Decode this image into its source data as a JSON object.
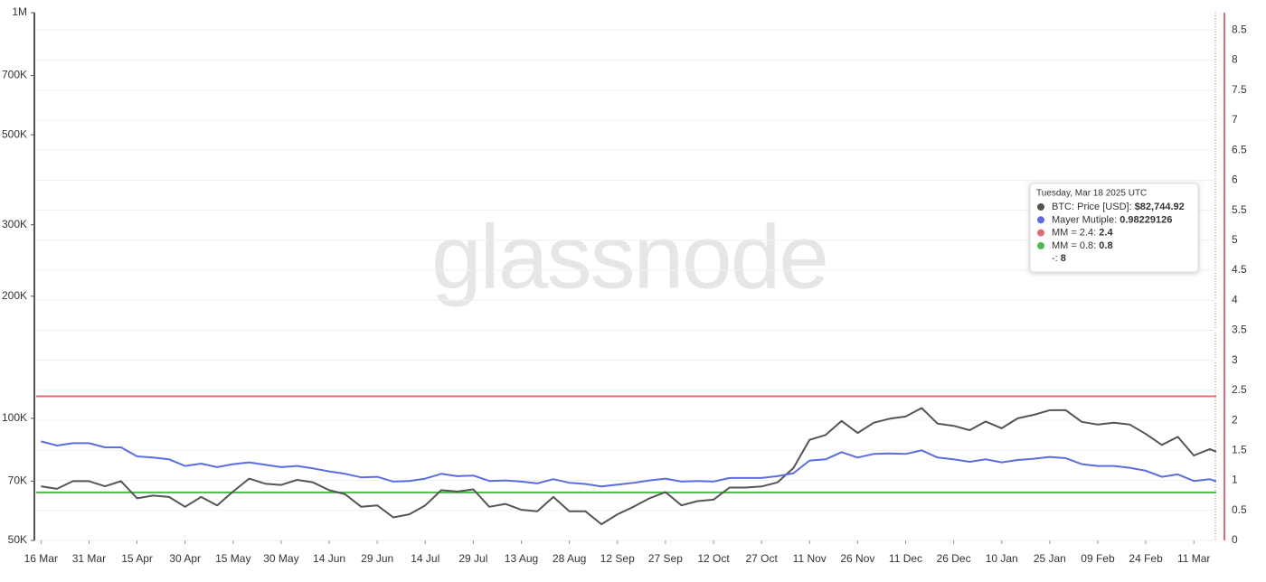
{
  "chart_data": {
    "type": "line",
    "watermark": "glassnode",
    "log_y": true,
    "grid": true,
    "ylim": [
      50000,
      1000000
    ],
    "yticks": [
      {
        "value": 50000,
        "label": "50K"
      },
      {
        "value": 70000,
        "label": "70K"
      },
      {
        "value": 100000,
        "label": "100K"
      },
      {
        "value": 200000,
        "label": "200K"
      },
      {
        "value": 300000,
        "label": "300K"
      },
      {
        "value": 500000,
        "label": "500K"
      },
      {
        "value": 700000,
        "label": "700K"
      },
      {
        "value": 1000000,
        "label": "1M"
      }
    ],
    "y2lim": [
      0,
      8.79
    ],
    "y2ticks": [
      0,
      0.5,
      1,
      1.5,
      2,
      2.5,
      3,
      3.5,
      4,
      4.5,
      5,
      5.5,
      6,
      6.5,
      7,
      7.5,
      8,
      8.5
    ],
    "xlim": [
      -1.5,
      367
    ],
    "xticks": [
      {
        "value": 0,
        "label": "16 Mar"
      },
      {
        "value": 15,
        "label": "31 Mar"
      },
      {
        "value": 30,
        "label": "15 Apr"
      },
      {
        "value": 45,
        "label": "30 Apr"
      },
      {
        "value": 60,
        "label": "15 May"
      },
      {
        "value": 75,
        "label": "30 May"
      },
      {
        "value": 90,
        "label": "14 Jun"
      },
      {
        "value": 105,
        "label": "29 Jun"
      },
      {
        "value": 120,
        "label": "14 Jul"
      },
      {
        "value": 135,
        "label": "29 Jul"
      },
      {
        "value": 150,
        "label": "13 Aug"
      },
      {
        "value": 165,
        "label": "28 Aug"
      },
      {
        "value": 180,
        "label": "12 Sep"
      },
      {
        "value": 195,
        "label": "27 Sep"
      },
      {
        "value": 210,
        "label": "12 Oct"
      },
      {
        "value": 225,
        "label": "27 Oct"
      },
      {
        "value": 240,
        "label": "11 Nov"
      },
      {
        "value": 255,
        "label": "26 Nov"
      },
      {
        "value": 270,
        "label": "11 Dec"
      },
      {
        "value": 285,
        "label": "26 Dec"
      },
      {
        "value": 300,
        "label": "10 Jan"
      },
      {
        "value": 315,
        "label": "25 Jan"
      },
      {
        "value": 330,
        "label": "09 Feb"
      },
      {
        "value": 345,
        "label": "24 Feb"
      },
      {
        "value": 360,
        "label": "11 Mar"
      }
    ],
    "x": [
      0,
      5,
      10,
      15,
      20,
      25,
      30,
      35,
      40,
      45,
      50,
      55,
      60,
      65,
      70,
      75,
      80,
      85,
      90,
      95,
      100,
      105,
      110,
      115,
      120,
      125,
      130,
      135,
      140,
      145,
      150,
      155,
      160,
      165,
      170,
      175,
      180,
      185,
      190,
      195,
      200,
      205,
      210,
      215,
      220,
      225,
      230,
      235,
      240,
      245,
      250,
      255,
      260,
      265,
      270,
      275,
      280,
      285,
      290,
      295,
      300,
      305,
      310,
      315,
      320,
      325,
      330,
      335,
      340,
      345,
      350,
      355,
      360,
      365,
      367
    ],
    "series": [
      {
        "name": "BTC: Price [USD]",
        "color": "#555555",
        "axis": "y",
        "values": [
          68000,
          67000,
          70000,
          70000,
          68000,
          70000,
          63500,
          64500,
          64000,
          60500,
          64000,
          61000,
          66000,
          71000,
          69000,
          68500,
          70500,
          69500,
          66500,
          65000,
          60500,
          61000,
          57000,
          58000,
          61000,
          66500,
          66000,
          66800,
          60500,
          61500,
          59500,
          59000,
          64000,
          59000,
          59000,
          54800,
          58000,
          60500,
          63500,
          65800,
          61000,
          62500,
          63000,
          67500,
          67500,
          67900,
          69500,
          75500,
          88500,
          91000,
          98500,
          92000,
          97500,
          99800,
          101000,
          106000,
          97000,
          95800,
          93500,
          98200,
          94500,
          100000,
          102000,
          104700,
          104700,
          98000,
          96500,
          97500,
          96500,
          91500,
          86000,
          90000,
          81000,
          84000,
          82744.92
        ]
      },
      {
        "name": "Mayer Mutiple",
        "color": "#5b6ee1",
        "axis": "y2",
        "values": [
          1.65,
          1.58,
          1.62,
          1.62,
          1.55,
          1.55,
          1.4,
          1.38,
          1.35,
          1.24,
          1.28,
          1.22,
          1.27,
          1.3,
          1.26,
          1.22,
          1.24,
          1.2,
          1.15,
          1.11,
          1.05,
          1.06,
          0.98,
          0.99,
          1.03,
          1.11,
          1.07,
          1.08,
          0.99,
          1.0,
          0.98,
          0.95,
          1.02,
          0.96,
          0.94,
          0.9,
          0.93,
          0.96,
          1.0,
          1.03,
          0.98,
          0.99,
          0.98,
          1.04,
          1.04,
          1.04,
          1.07,
          1.12,
          1.33,
          1.35,
          1.47,
          1.38,
          1.44,
          1.45,
          1.44,
          1.5,
          1.38,
          1.35,
          1.31,
          1.35,
          1.3,
          1.34,
          1.36,
          1.39,
          1.37,
          1.27,
          1.24,
          1.24,
          1.21,
          1.16,
          1.06,
          1.1,
          0.99,
          1.02,
          0.98229126
        ]
      }
    ],
    "reference_lines": [
      {
        "name": "MM = 2.4",
        "value": 2.4,
        "color": "#e06c75",
        "axis": "y2"
      },
      {
        "name": "MM = 0.8",
        "value": 0.8,
        "color": "#4cbb4c",
        "axis": "y2"
      }
    ],
    "tooltip": {
      "date": "Tuesday, Mar 18 2025 UTC",
      "items": [
        {
          "label": "BTC: Price [USD]:",
          "value": 82744.92,
          "value_label": "$82,744.92",
          "color": "#555555"
        },
        {
          "label": "Mayer Mutiple:",
          "value": 0.98229126,
          "color": "#5b6ee1"
        },
        {
          "label": "MM = 2.4:",
          "value": 2.4,
          "color": "#e06c75"
        },
        {
          "label": "MM = 0.8:",
          "value": 0.8,
          "color": "#4cbb4c"
        },
        {
          "label": "-:",
          "value": 8
        }
      ]
    }
  }
}
